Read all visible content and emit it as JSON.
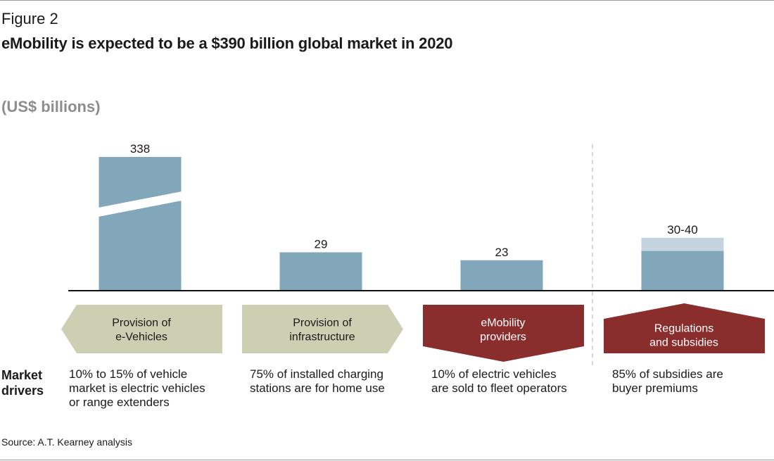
{
  "figure_label": "Figure 2",
  "title": "eMobility is expected to be a $390 billion global market in 2020",
  "unit_label": "(US$ billions)",
  "colors": {
    "bar": "#82a6ba",
    "bar_range": "#c4d3e0",
    "arrow_light": "#cdcfb3",
    "arrow_dark": "#8a2d2d",
    "baseline": "#111111",
    "divider": "#bdbdbd"
  },
  "chart_data": {
    "type": "bar",
    "categories": [
      "Provision of e-Vehicles",
      "Provision of infrastructure",
      "eMobility providers",
      "Regulations and subsidies"
    ],
    "values": [
      338,
      29,
      23,
      40
    ],
    "range_low": [
      null,
      null,
      null,
      30
    ],
    "data_labels": [
      "338",
      "29",
      "23",
      "30-40"
    ],
    "broken_axis_bar": 0,
    "title": "eMobility is expected to be a $390 billion global market in 2020",
    "ylabel": "(US$ billions)"
  },
  "segments": [
    {
      "label_line1": "Provision of",
      "label_line2": "e-Vehicles",
      "shape": "arrow-left",
      "style": "light",
      "driver": [
        "10% to 15% of vehicle",
        "market is electric vehicles",
        "or range extenders"
      ]
    },
    {
      "label_line1": "Provision of",
      "label_line2": "infrastructure",
      "shape": "arrow-right",
      "style": "light",
      "driver": [
        "75% of installed charging",
        "stations are for home use"
      ]
    },
    {
      "label_line1": "eMobility",
      "label_line2": "providers",
      "shape": "arrow-down",
      "style": "dark",
      "driver": [
        "10% of electric vehicles",
        "are sold to fleet operators"
      ]
    },
    {
      "label_line1": "Regulations",
      "label_line2": "and subsidies",
      "shape": "arrow-up",
      "style": "dark",
      "driver": [
        "85% of subsidies are",
        "buyer premiums"
      ]
    }
  ],
  "drivers_heading_line1": "Market",
  "drivers_heading_line2": "drivers",
  "source": "Source: A.T. Kearney analysis"
}
